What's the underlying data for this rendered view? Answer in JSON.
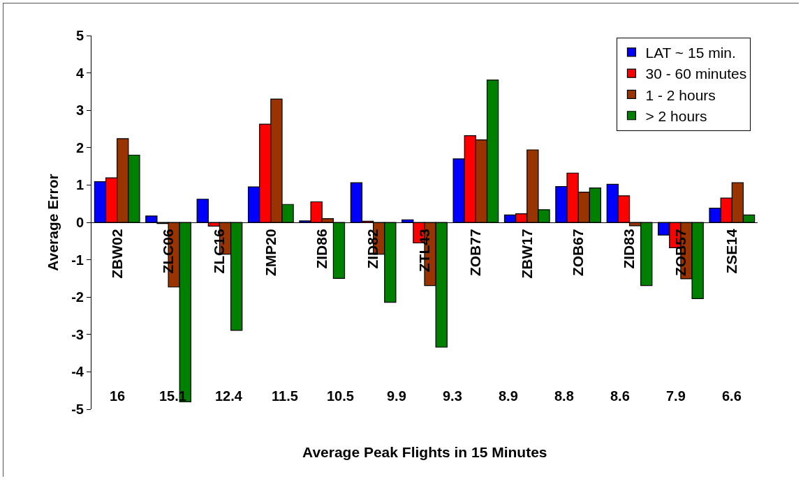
{
  "chart_data": {
    "type": "bar",
    "xlabel": "Average Peak Flights in 15 Minutes",
    "ylabel": "Average Error",
    "categories": [
      "ZBW02",
      "ZLC06",
      "ZLC16",
      "ZMP20",
      "ZID86",
      "ZID82",
      "ZTL43",
      "ZOB77",
      "ZBW17",
      "ZOB67",
      "ZID83",
      "ZOB57",
      "ZSE14"
    ],
    "series": [
      {
        "name": "LAT ~ 15 min.",
        "color": "#0000ff",
        "values": [
          1.09,
          0.17,
          0.62,
          0.95,
          0.04,
          1.06,
          0.07,
          1.7,
          0.2,
          0.96,
          1.02,
          -0.34,
          0.38
        ]
      },
      {
        "name": "30 - 60 minutes",
        "color": "#ff0000",
        "values": [
          1.19,
          -0.03,
          -0.1,
          2.63,
          0.55,
          0.03,
          -0.55,
          2.32,
          0.23,
          1.32,
          0.71,
          -0.68,
          0.65
        ]
      },
      {
        "name": "1 - 2 hours",
        "color": "#993300",
        "values": [
          2.24,
          -1.73,
          -0.85,
          3.3,
          0.1,
          -0.85,
          -1.69,
          2.21,
          1.94,
          0.81,
          -0.09,
          -1.51,
          1.06
        ]
      },
      {
        "name": "> 2 hours",
        "color": "#008000",
        "values": [
          1.8,
          -4.8,
          -2.89,
          0.48,
          -1.5,
          -2.14,
          -3.34,
          3.81,
          0.34,
          0.92,
          -1.69,
          -2.04,
          0.2
        ]
      }
    ],
    "annotations": [
      "16",
      "15.1",
      "12.4",
      "11.5",
      "10.5",
      "9.9",
      "9.3",
      "8.9",
      "8.8",
      "8.6",
      "7.9",
      "6.6"
    ],
    "ylim": [
      -5,
      5
    ],
    "yticks": [
      -5,
      -4,
      -3,
      -2,
      -1,
      0,
      1,
      2,
      3,
      4,
      5
    ],
    "grid": false,
    "legend": "top right"
  }
}
